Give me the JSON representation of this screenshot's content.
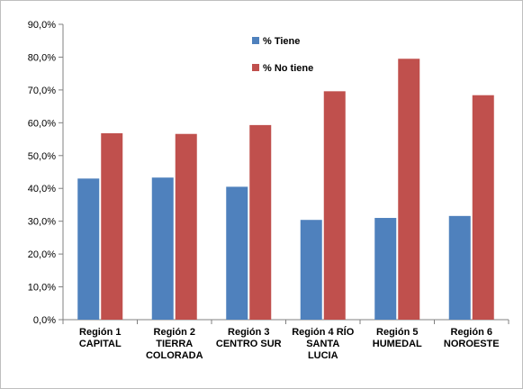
{
  "chart_data": {
    "type": "bar",
    "categories": [
      [
        "Región 1",
        "CAPITAL"
      ],
      [
        "Región 2",
        "TIERRA",
        "COLORADA"
      ],
      [
        "Región 3",
        "CENTRO SUR"
      ],
      [
        "Región 4  RÍO",
        "SANTA",
        "LUCIA"
      ],
      [
        "Región 5",
        "HUMEDAL"
      ],
      [
        "Región 6",
        "NOROESTE"
      ]
    ],
    "series": [
      {
        "name": "% Tiene",
        "color": "#4f81bd",
        "values": [
          43.0,
          43.3,
          40.5,
          30.4,
          31.0,
          31.6
        ]
      },
      {
        "name": "% No tiene",
        "color": "#c0504d",
        "values": [
          56.8,
          56.6,
          59.3,
          69.6,
          79.5,
          68.4
        ]
      }
    ],
    "y_ticks": [
      "0,0%",
      "10,0%",
      "20,0%",
      "30,0%",
      "40,0%",
      "50,0%",
      "60,0%",
      "70,0%",
      "80,0%",
      "90,0%"
    ],
    "ylim": [
      0,
      90
    ],
    "legend_position": "top-center-inside",
    "grid": false
  }
}
